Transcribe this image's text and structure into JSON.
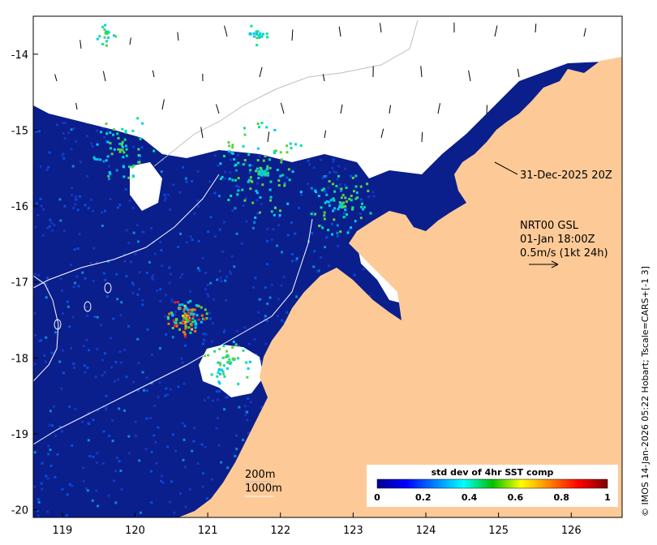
{
  "map": {
    "lon_range": [
      118.6,
      126.7
    ],
    "lat_range": [
      -20.1,
      -13.5
    ],
    "x_ticks": [
      {
        "lon": 119,
        "label": "119"
      },
      {
        "lon": 120,
        "label": "120"
      },
      {
        "lon": 121,
        "label": "121"
      },
      {
        "lon": 122,
        "label": "122"
      },
      {
        "lon": 123,
        "label": "123"
      },
      {
        "lon": 124,
        "label": "124"
      },
      {
        "lon": 125,
        "label": "125"
      },
      {
        "lon": 126,
        "label": "126"
      }
    ],
    "y_ticks": [
      {
        "lat": -14,
        "label": "-14"
      },
      {
        "lat": -15,
        "label": "-15"
      },
      {
        "lat": -16,
        "label": "-16"
      },
      {
        "lat": -17,
        "label": "-17"
      },
      {
        "lat": -18,
        "label": "-18"
      },
      {
        "lat": -19,
        "label": "-19"
      },
      {
        "lat": -20,
        "label": "-20"
      }
    ],
    "colors": {
      "land": "#fdca97",
      "ocean_dark": "#0a1e8c",
      "cloud": "#ffffff"
    }
  },
  "annotations": {
    "cloud_time": "31-Dec-2025 20Z",
    "current_title": "NRT00 GSL",
    "current_time": "01-Jan 18:00Z",
    "current_scale": "0.5m/s (1kt 24h)",
    "contour_200": "200m",
    "contour_1000": "1000m"
  },
  "colorbar": {
    "title": "std dev of 4hr SST comp",
    "ticks": [
      "0",
      "0.2",
      "0.4",
      "0.6",
      "0.8",
      "1"
    ],
    "colors": [
      "#00008f",
      "#0000ff",
      "#0080ff",
      "#00ffff",
      "#00c000",
      "#ffff00",
      "#ff8000",
      "#ff0000",
      "#800000"
    ]
  },
  "credit": "© IMOS 14-Jan-2026 05:22 Hobart; Tscale=CARS+[-1 3]"
}
